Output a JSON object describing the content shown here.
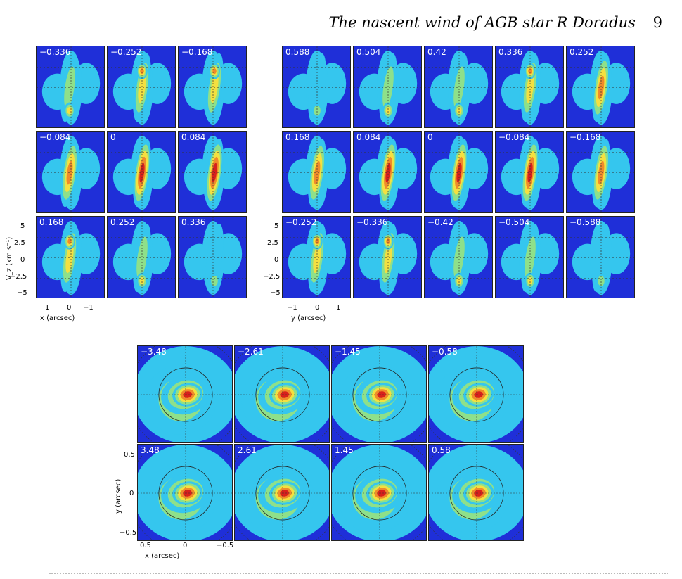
{
  "page": {
    "running_title": "The nascent wind of AGB star R Doradus",
    "page_number": "9"
  },
  "figure_left": {
    "labels": [
      "−0.336",
      "−0.252",
      "−0.168",
      "−0.084",
      "0",
      "0.084",
      "0.168",
      "0.252",
      "0.336"
    ],
    "y_ticks": [
      "5",
      "2.5",
      "0",
      "−2.5",
      "−5"
    ],
    "x_ticks": [
      "1",
      "0",
      "−1"
    ],
    "ylabel": "V_z (km s⁻¹)",
    "xlabel": "x (arcsec)"
  },
  "figure_right": {
    "labels": [
      "0.588",
      "0.504",
      "0.42",
      "0.336",
      "0.252",
      "0.168",
      "0.084",
      "0",
      "−0.084",
      "−0.168",
      "−0.252",
      "−0.336",
      "−0.42",
      "−0.504",
      "−0.588"
    ],
    "y_ticks": [
      "5",
      "2.5",
      "0",
      "−2.5",
      "−5"
    ],
    "x_ticks": [
      "−1",
      "0",
      "1"
    ],
    "xlabel": "y (arcsec)"
  },
  "figure_bottom": {
    "labels": [
      "−3.48",
      "−2.61",
      "−1.45",
      "−0.58",
      "3.48",
      "2.61",
      "1.45",
      "0.58"
    ],
    "y_ticks": [
      "0.5",
      "0",
      "−0.5"
    ],
    "x_ticks": [
      "0.5",
      "0",
      "−0.5"
    ],
    "ylabel": "y (arcsec)",
    "xlabel": "x (arcsec)"
  },
  "colors": {
    "background": "#1f2fd8",
    "cyan": "#35c6ee",
    "green": "#8ee08a",
    "yellow": "#f4e040",
    "orange": "#f08a2a",
    "red": "#d8201c"
  }
}
